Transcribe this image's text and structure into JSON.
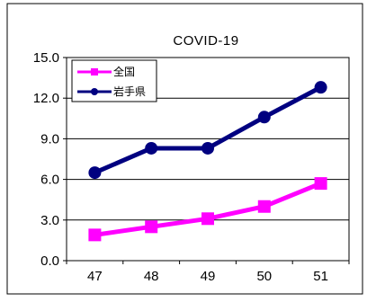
{
  "chart_data": {
    "type": "line",
    "title": "COVID-19",
    "categories": [
      "47",
      "48",
      "49",
      "50",
      "51"
    ],
    "y_ticks": [
      "15.0",
      "12.0",
      "9.0",
      "6.0",
      "3.0",
      "0.0"
    ],
    "ylim": [
      0,
      15
    ],
    "grid": "horizontal",
    "legend_position": "top-left",
    "series": [
      {
        "name": "全国",
        "values": [
          1.9,
          2.5,
          3.1,
          4.0,
          5.7
        ],
        "color": "#ff00ff",
        "marker": "square"
      },
      {
        "name": "岩手県",
        "values": [
          6.5,
          8.3,
          8.3,
          10.6,
          12.8
        ],
        "color": "#000080",
        "marker": "circle"
      }
    ]
  }
}
